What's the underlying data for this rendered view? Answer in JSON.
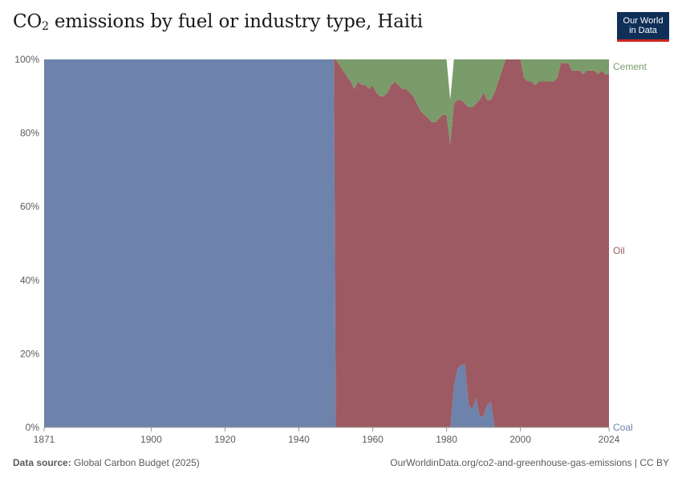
{
  "header": {
    "title_main": "CO",
    "title_sub": "2",
    "title_rest": " emissions by fuel or industry type, Haiti",
    "logo_line1": "Our World",
    "logo_line2": "in Data"
  },
  "chart_data": {
    "type": "area",
    "stacked": "percent",
    "ylim": [
      0,
      100
    ],
    "xlim": [
      1871,
      2024
    ],
    "yticks": [
      0,
      20,
      40,
      60,
      80,
      100
    ],
    "ytick_labels": [
      "0%",
      "20%",
      "40%",
      "60%",
      "80%",
      "100%"
    ],
    "xticks": [
      1871,
      1900,
      1920,
      1940,
      1960,
      1980,
      2000,
      2024
    ],
    "xtick_labels": [
      "1871",
      "1900",
      "1920",
      "1940",
      "1960",
      "1980",
      "2000",
      "2024"
    ],
    "grid": "horizontal",
    "legend": "right-inline labels",
    "series": [
      {
        "name": "Coal",
        "color": "#6d83ab",
        "points": [
          [
            1871,
            100
          ],
          [
            1949,
            100
          ],
          [
            1949.5,
            100
          ],
          [
            1950,
            0
          ],
          [
            1981,
            0
          ],
          [
            1982,
            11
          ],
          [
            1983,
            16
          ],
          [
            1984,
            17
          ],
          [
            1985,
            17
          ],
          [
            1986,
            6
          ],
          [
            1987,
            5
          ],
          [
            1988,
            8
          ],
          [
            1989,
            3
          ],
          [
            1990,
            3
          ],
          [
            1991,
            6
          ],
          [
            1992,
            7
          ],
          [
            1993,
            0
          ],
          [
            2024,
            0
          ]
        ]
      },
      {
        "name": "Oil",
        "color": "#9e5a63",
        "points": [
          [
            1871,
            0
          ],
          [
            1949,
            0
          ],
          [
            1949.5,
            0
          ],
          [
            1950,
            100
          ],
          [
            1954,
            94
          ],
          [
            1955,
            92
          ],
          [
            1956,
            94
          ],
          [
            1957,
            93
          ],
          [
            1958,
            93
          ],
          [
            1959,
            92
          ],
          [
            1960,
            93
          ],
          [
            1961,
            91
          ],
          [
            1962,
            90
          ],
          [
            1963,
            90
          ],
          [
            1964,
            91
          ],
          [
            1965,
            93
          ],
          [
            1966,
            94
          ],
          [
            1967,
            93
          ],
          [
            1968,
            92
          ],
          [
            1969,
            92
          ],
          [
            1970,
            91
          ],
          [
            1971,
            90
          ],
          [
            1972,
            88
          ],
          [
            1973,
            86
          ],
          [
            1974,
            85
          ],
          [
            1975,
            84
          ],
          [
            1976,
            83
          ],
          [
            1977,
            83
          ],
          [
            1978,
            84
          ],
          [
            1979,
            85
          ],
          [
            1980,
            85
          ],
          [
            1981,
            77
          ],
          [
            1982,
            77
          ],
          [
            1983,
            73
          ],
          [
            1984,
            72
          ],
          [
            1985,
            71
          ],
          [
            1986,
            81
          ],
          [
            1987,
            82
          ],
          [
            1988,
            80
          ],
          [
            1989,
            86
          ],
          [
            1990,
            88
          ],
          [
            1991,
            83
          ],
          [
            1992,
            82
          ],
          [
            1993,
            91
          ],
          [
            1994,
            94
          ],
          [
            1995,
            97
          ],
          [
            1996,
            100
          ],
          [
            2000,
            100
          ],
          [
            2001,
            95
          ],
          [
            2002,
            94
          ],
          [
            2003,
            94
          ],
          [
            2004,
            93
          ],
          [
            2005,
            94
          ],
          [
            2006,
            94
          ],
          [
            2007,
            94
          ],
          [
            2008,
            94
          ],
          [
            2009,
            94
          ],
          [
            2010,
            95
          ],
          [
            2011,
            99
          ],
          [
            2012,
            99
          ],
          [
            2013,
            99
          ],
          [
            2014,
            97
          ],
          [
            2015,
            97
          ],
          [
            2016,
            97
          ],
          [
            2017,
            96
          ],
          [
            2018,
            97
          ],
          [
            2019,
            97
          ],
          [
            2020,
            97
          ],
          [
            2021,
            96
          ],
          [
            2022,
            97
          ],
          [
            2023,
            96
          ],
          [
            2024,
            96
          ]
        ]
      },
      {
        "name": "Cement",
        "color": "#7a9c6a",
        "points": [
          [
            1871,
            0
          ],
          [
            1949,
            0
          ],
          [
            1950,
            0
          ],
          [
            1954,
            6
          ],
          [
            1955,
            8
          ],
          [
            1956,
            6
          ],
          [
            1957,
            7
          ],
          [
            1958,
            7
          ],
          [
            1959,
            8
          ],
          [
            1960,
            7
          ],
          [
            1961,
            9
          ],
          [
            1962,
            10
          ],
          [
            1963,
            10
          ],
          [
            1964,
            9
          ],
          [
            1965,
            7
          ],
          [
            1966,
            6
          ],
          [
            1967,
            7
          ],
          [
            1968,
            8
          ],
          [
            1969,
            8
          ],
          [
            1970,
            9
          ],
          [
            1971,
            10
          ],
          [
            1972,
            12
          ],
          [
            1973,
            14
          ],
          [
            1974,
            15
          ],
          [
            1975,
            16
          ],
          [
            1976,
            17
          ],
          [
            1977,
            17
          ],
          [
            1978,
            16
          ],
          [
            1979,
            15
          ],
          [
            1980,
            15
          ],
          [
            1981,
            12
          ],
          [
            1982,
            12
          ],
          [
            1983,
            11
          ],
          [
            1984,
            11
          ],
          [
            1985,
            12
          ],
          [
            1986,
            13
          ],
          [
            1987,
            13
          ],
          [
            1988,
            12
          ],
          [
            1989,
            11
          ],
          [
            1990,
            9
          ],
          [
            1991,
            11
          ],
          [
            1992,
            11
          ],
          [
            1993,
            9
          ],
          [
            1994,
            6
          ],
          [
            1995,
            3
          ],
          [
            1996,
            0
          ],
          [
            2000,
            0
          ],
          [
            2001,
            5
          ],
          [
            2002,
            6
          ],
          [
            2003,
            6
          ],
          [
            2004,
            7
          ],
          [
            2005,
            6
          ],
          [
            2006,
            6
          ],
          [
            2007,
            6
          ],
          [
            2008,
            6
          ],
          [
            2009,
            6
          ],
          [
            2010,
            5
          ],
          [
            2011,
            1
          ],
          [
            2012,
            1
          ],
          [
            2013,
            1
          ],
          [
            2014,
            3
          ],
          [
            2015,
            3
          ],
          [
            2016,
            3
          ],
          [
            2017,
            4
          ],
          [
            2018,
            3
          ],
          [
            2019,
            3
          ],
          [
            2020,
            3
          ],
          [
            2021,
            4
          ],
          [
            2022,
            3
          ],
          [
            2023,
            4
          ],
          [
            2024,
            4
          ]
        ]
      }
    ]
  },
  "footer": {
    "source_label": "Data source:",
    "source_value": " Global Carbon Budget (2025)",
    "right": "OurWorldinData.org/co2-and-greenhouse-gas-emissions | CC BY"
  }
}
